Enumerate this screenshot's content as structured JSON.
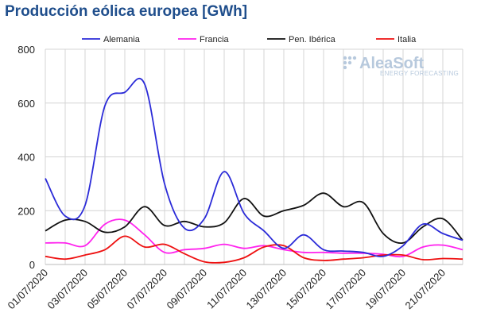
{
  "chart_data": {
    "type": "line",
    "title": "Producción eólica europea [GWh]",
    "xlabel": "",
    "ylabel": "",
    "x": [
      "01/07/2020",
      "02/07/2020",
      "03/07/2020",
      "04/07/2020",
      "05/07/2020",
      "06/07/2020",
      "07/07/2020",
      "08/07/2020",
      "09/07/2020",
      "10/07/2020",
      "11/07/2020",
      "12/07/2020",
      "13/07/2020",
      "14/07/2020",
      "15/07/2020",
      "16/07/2020",
      "17/07/2020",
      "18/07/2020",
      "19/07/2020",
      "20/07/2020",
      "21/07/2020",
      "22/07/2020"
    ],
    "x_tick_labels": [
      "01/07/2020",
      "03/07/2020",
      "05/07/2020",
      "07/07/2020",
      "09/07/2020",
      "11/07/2020",
      "13/07/2020",
      "15/07/2020",
      "17/07/2020",
      "19/07/2020",
      "21/07/2020"
    ],
    "ylim": [
      0,
      800
    ],
    "y_ticks": [
      0,
      200,
      400,
      600,
      800
    ],
    "grid": true,
    "legend_position": "top",
    "series": [
      {
        "name": "Alemania",
        "color": "#2b2bd8",
        "values": [
          320,
          180,
          220,
          590,
          640,
          670,
          300,
          135,
          170,
          345,
          190,
          125,
          60,
          110,
          55,
          50,
          45,
          30,
          70,
          150,
          115,
          90
        ]
      },
      {
        "name": "Francia",
        "color": "#ff22ee",
        "values": [
          80,
          80,
          70,
          150,
          165,
          110,
          45,
          55,
          60,
          75,
          60,
          70,
          55,
          45,
          45,
          42,
          42,
          38,
          30,
          65,
          72,
          55
        ]
      },
      {
        "name": "Pen. Ibérica",
        "color": "#111111",
        "values": [
          125,
          165,
          160,
          120,
          140,
          215,
          145,
          160,
          140,
          155,
          245,
          180,
          200,
          220,
          265,
          215,
          230,
          115,
          80,
          140,
          170,
          90
        ]
      },
      {
        "name": "Italia",
        "color": "#ee1111",
        "values": [
          30,
          20,
          35,
          55,
          105,
          65,
          75,
          40,
          10,
          8,
          25,
          65,
          70,
          25,
          15,
          20,
          25,
          35,
          35,
          18,
          22,
          20
        ]
      }
    ]
  },
  "logo": {
    "name": "AleaSoft",
    "tagline": "ENERGY FORECASTING"
  }
}
